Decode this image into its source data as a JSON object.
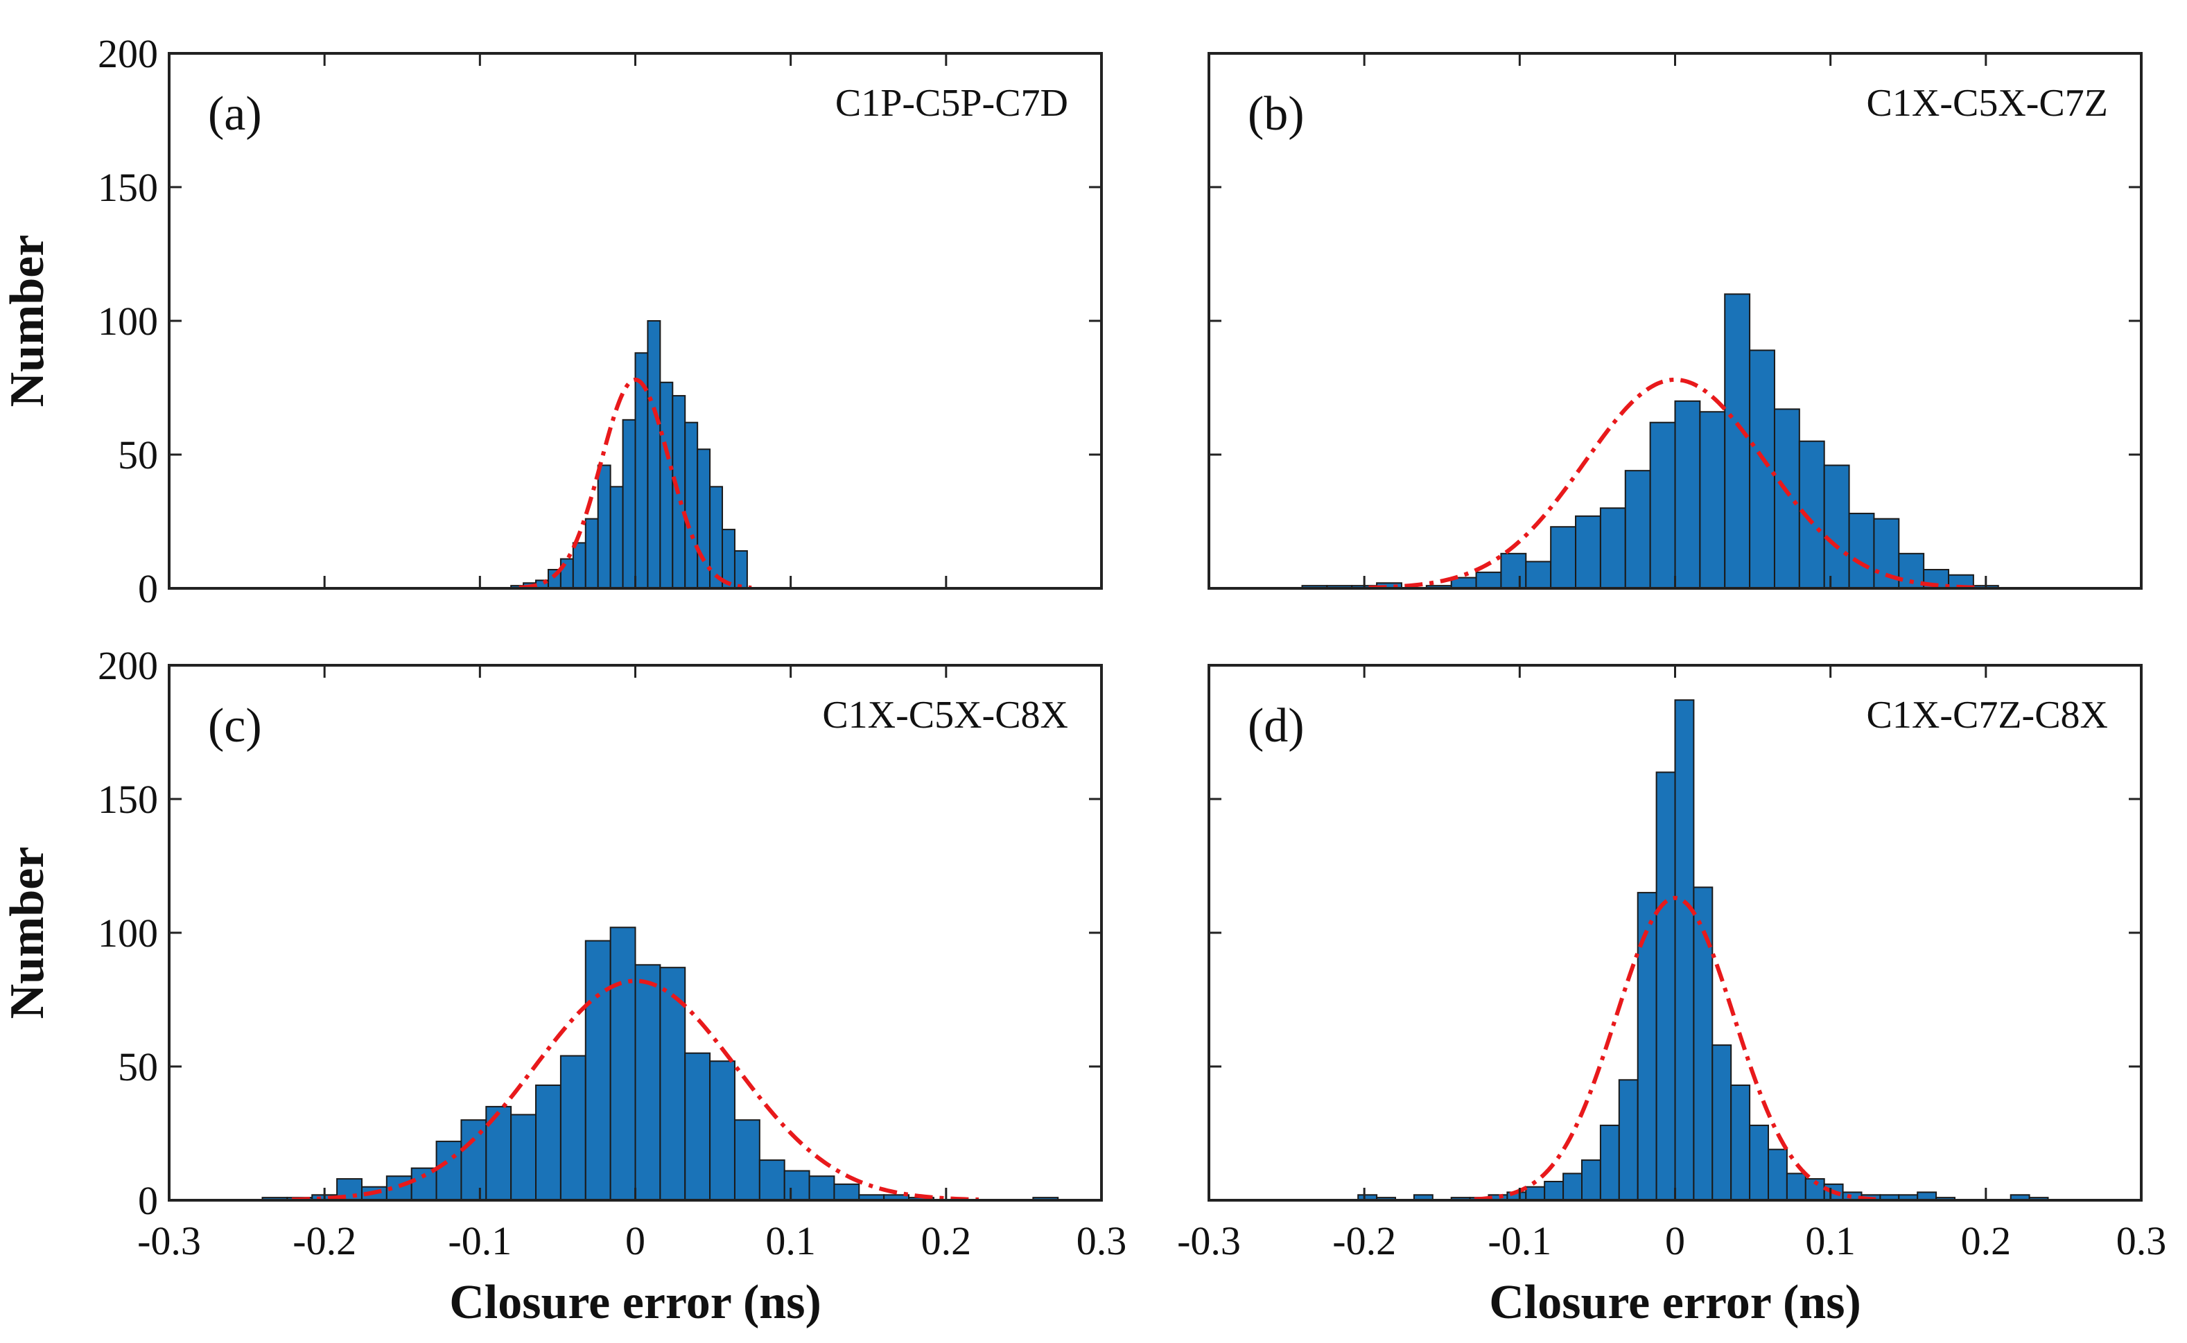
{
  "figure": {
    "colors": {
      "bar_fill": "#1a73b8",
      "bar_edge": "#1a1a1a",
      "fit_line": "#e8191b",
      "axis": "#222222"
    }
  },
  "chart_data": [
    {
      "type": "bar",
      "panel_label": "(a)",
      "title": "C1P-C5P-C7D",
      "xlabel": "",
      "ylabel": "Number",
      "xlim": [
        -0.3,
        0.3
      ],
      "ylim": [
        0,
        200
      ],
      "xticks": [
        "-0.3",
        "-0.2",
        "-0.1",
        "0",
        "0.1",
        "0.2",
        "0.3"
      ],
      "yticks": [
        "0",
        "50",
        "100",
        "150",
        "200"
      ],
      "bin_width": 0.008,
      "bin_centers": [
        -0.076,
        -0.068,
        -0.06,
        -0.052,
        -0.044,
        -0.036,
        -0.028,
        -0.02,
        -0.012,
        -0.004,
        0.004,
        0.012,
        0.02,
        0.028,
        0.036,
        0.044,
        0.052,
        0.06,
        0.068
      ],
      "values": [
        1,
        2,
        3,
        7,
        11,
        17,
        26,
        46,
        38,
        63,
        88,
        100,
        77,
        72,
        62,
        52,
        38,
        22,
        14
      ],
      "fit": {
        "type": "gaussian",
        "mean": 0.0,
        "sigma": 0.022,
        "peak": 78
      }
    },
    {
      "type": "bar",
      "panel_label": "(b)",
      "title": "C1X-C5X-C7Z",
      "xlabel": "",
      "ylabel": "",
      "xlim": [
        -0.3,
        0.3
      ],
      "ylim": [
        0,
        200
      ],
      "xticks": [
        "-0.3",
        "-0.2",
        "-0.1",
        "0",
        "0.1",
        "0.2",
        "0.3"
      ],
      "yticks": [
        "0",
        "50",
        "100",
        "150",
        "200"
      ],
      "bin_width": 0.016,
      "bin_centers": [
        -0.232,
        -0.216,
        -0.2,
        -0.184,
        -0.168,
        -0.152,
        -0.136,
        -0.12,
        -0.104,
        -0.088,
        -0.072,
        -0.056,
        -0.04,
        -0.024,
        -0.008,
        0.008,
        0.024,
        0.04,
        0.056,
        0.072,
        0.088,
        0.104,
        0.12,
        0.136,
        0.152,
        0.168,
        0.184,
        0.2
      ],
      "values": [
        1,
        1,
        1,
        2,
        0,
        1,
        4,
        6,
        13,
        10,
        23,
        27,
        30,
        44,
        62,
        70,
        66,
        110,
        89,
        67,
        55,
        46,
        28,
        26,
        13,
        7,
        5,
        1
      ],
      "fit": {
        "type": "gaussian",
        "mean": 0.0,
        "sigma": 0.058,
        "peak": 78
      }
    },
    {
      "type": "bar",
      "panel_label": "(c)",
      "title": "C1X-C5X-C8X",
      "xlabel": "Closure error (ns)",
      "ylabel": "Number",
      "xlim": [
        -0.3,
        0.3
      ],
      "ylim": [
        0,
        200
      ],
      "xticks": [
        "-0.3",
        "-0.2",
        "-0.1",
        "0",
        "0.1",
        "0.2",
        "0.3"
      ],
      "yticks": [
        "0",
        "50",
        "100",
        "150",
        "200"
      ],
      "bin_width": 0.016,
      "bin_centers": [
        -0.232,
        -0.216,
        -0.2,
        -0.184,
        -0.168,
        -0.152,
        -0.136,
        -0.12,
        -0.104,
        -0.088,
        -0.072,
        -0.056,
        -0.04,
        -0.024,
        -0.008,
        0.008,
        0.024,
        0.04,
        0.056,
        0.072,
        0.088,
        0.104,
        0.12,
        0.136,
        0.152,
        0.168,
        0.184,
        0.2,
        0.216,
        0.232,
        0.248,
        0.264
      ],
      "values": [
        1,
        1,
        2,
        8,
        5,
        9,
        12,
        22,
        30,
        35,
        32,
        43,
        54,
        97,
        102,
        88,
        87,
        55,
        52,
        30,
        15,
        11,
        9,
        6,
        2,
        2,
        1,
        0,
        0,
        0,
        0,
        1
      ],
      "fit": {
        "type": "gaussian",
        "mean": 0.0,
        "sigma": 0.065,
        "peak": 82
      }
    },
    {
      "type": "bar",
      "panel_label": "(d)",
      "title": "C1X-C7Z-C8X",
      "xlabel": "Closure error (ns)",
      "ylabel": "",
      "xlim": [
        -0.3,
        0.3
      ],
      "ylim": [
        0,
        200
      ],
      "xticks": [
        "-0.3",
        "-0.2",
        "-0.1",
        "0",
        "0.1",
        "0.2",
        "0.3"
      ],
      "yticks": [
        "0",
        "50",
        "100",
        "150",
        "200"
      ],
      "bin_width": 0.012,
      "bin_centers": [
        -0.198,
        -0.186,
        -0.174,
        -0.162,
        -0.15,
        -0.138,
        -0.126,
        -0.114,
        -0.102,
        -0.09,
        -0.078,
        -0.066,
        -0.054,
        -0.042,
        -0.03,
        -0.018,
        -0.006,
        0.006,
        0.018,
        0.03,
        0.042,
        0.054,
        0.066,
        0.078,
        0.09,
        0.102,
        0.114,
        0.126,
        0.138,
        0.15,
        0.162,
        0.174,
        0.186,
        0.198,
        0.21,
        0.222,
        0.234
      ],
      "values": [
        2,
        1,
        0,
        2,
        0,
        1,
        1,
        2,
        3,
        5,
        7,
        10,
        15,
        28,
        45,
        115,
        160,
        187,
        117,
        58,
        43,
        28,
        19,
        10,
        8,
        6,
        3,
        2,
        2,
        2,
        3,
        1,
        0,
        0,
        0,
        2,
        1
      ],
      "fit": {
        "type": "gaussian",
        "mean": 0.0,
        "sigma": 0.038,
        "peak": 113
      }
    }
  ]
}
